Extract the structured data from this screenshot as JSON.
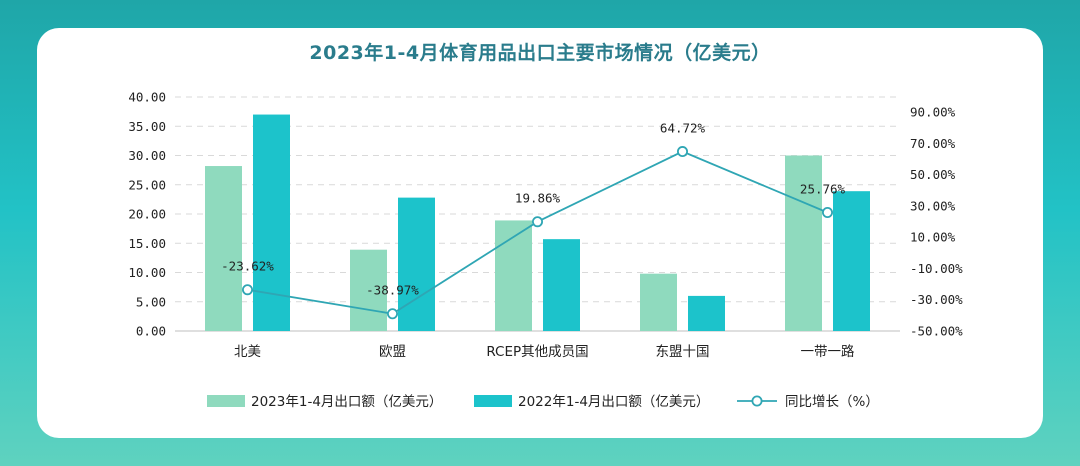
{
  "chart_data": {
    "type": "bar",
    "title": "2023年1-4月体育用品出口主要市场情况（亿美元）",
    "categories": [
      "北美",
      "欧盟",
      "RCEP其他成员国",
      "东盟十国",
      "一带一路"
    ],
    "series": [
      {
        "name": "2023年1-4月出口额（亿美元）",
        "values": [
          28.2,
          13.9,
          18.9,
          9.8,
          30.0
        ],
        "color": "#8fdabe",
        "kind": "bar"
      },
      {
        "name": "2022年1-4月出口额（亿美元）",
        "values": [
          37.0,
          22.8,
          15.7,
          6.0,
          23.9
        ],
        "color": "#1cc3cb",
        "kind": "bar"
      },
      {
        "name": "同比增长（%）",
        "values": [
          -23.62,
          -38.97,
          19.86,
          64.72,
          25.76
        ],
        "color": "#2fa6b4",
        "kind": "line"
      }
    ],
    "line_labels": [
      "-23.62%",
      "-38.97%",
      "19.86%",
      "64.72%",
      "25.76%"
    ],
    "y_left": {
      "ylim": [
        0,
        40
      ],
      "ticks": [
        "40.00",
        "35.00",
        "30.00",
        "25.00",
        "20.00",
        "15.00",
        "10.00",
        "5.00",
        "0.00"
      ]
    },
    "y_right": {
      "ylim": [
        -50,
        100
      ],
      "ticks": [
        "90.00%",
        "70.00%",
        "50.00%",
        "30.00%",
        "10.00%",
        "-10.00%",
        "-30.00%",
        "-50.00%"
      ]
    },
    "legend": [
      "2023年1-4月出口额（亿美元）",
      "2022年1-4月出口额（亿美元）",
      "同比增长（%）"
    ]
  }
}
